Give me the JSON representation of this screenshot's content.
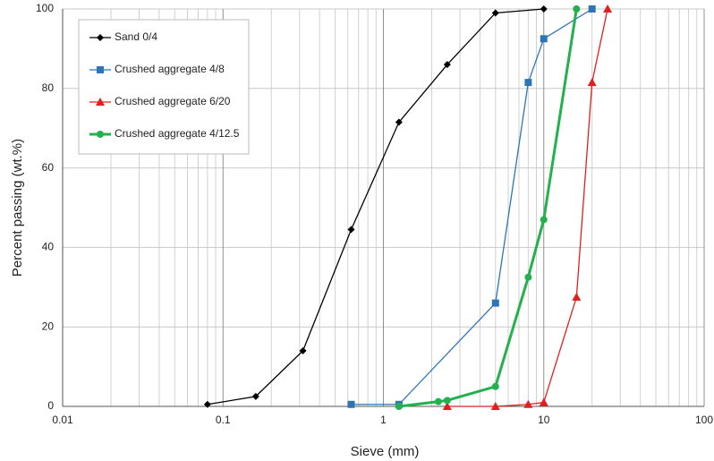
{
  "chart_data": {
    "type": "line",
    "x_label": "Sieve (mm)",
    "y_label": "Percent passing (wt.%)",
    "xlog": true,
    "xlim": [
      0.01,
      100
    ],
    "xticks": [
      0.01,
      0.1,
      1,
      10,
      100
    ],
    "ylim": [
      0,
      100
    ],
    "yticks": [
      0,
      20,
      40,
      60,
      80,
      100
    ],
    "grid": true,
    "legend": "upper left",
    "series": [
      {
        "name": "Sand 0/4",
        "color": "#000000",
        "marker": "diamond",
        "x": [
          0.08,
          0.16,
          0.315,
          0.63,
          1.25,
          2.5,
          5,
          10
        ],
        "values": [
          0.5,
          2.5,
          14,
          44.5,
          71.5,
          86,
          99,
          100
        ]
      },
      {
        "name": "Crushed aggregate 4/8",
        "color": "#2e75b6",
        "marker": "square",
        "x": [
          0.63,
          1.25,
          5,
          8,
          10,
          20
        ],
        "values": [
          0.5,
          0.5,
          26,
          81.5,
          92.5,
          100
        ]
      },
      {
        "name": "Crushed aggregate 6/20",
        "color": "#e02020",
        "marker": "triangle",
        "x": [
          2.5,
          5,
          8,
          10,
          16,
          20,
          25
        ],
        "values": [
          0,
          0,
          0.5,
          1,
          27.5,
          81.5,
          100
        ]
      },
      {
        "name": "Crushed aggregate 4/12.5",
        "color": "#22b14c",
        "marker": "circle",
        "width": 3,
        "x": [
          1.25,
          2.2,
          2.5,
          5,
          8,
          10,
          16
        ],
        "values": [
          0,
          1.2,
          1.5,
          5,
          32.5,
          47,
          100
        ]
      }
    ]
  }
}
